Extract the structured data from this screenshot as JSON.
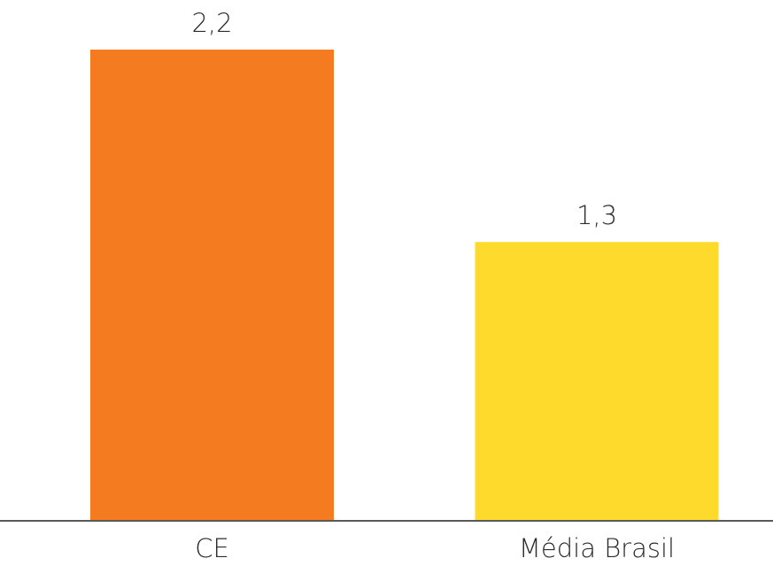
{
  "chart_data": {
    "type": "bar",
    "categories": [
      "CE",
      "Média Brasil"
    ],
    "values": [
      2.2,
      1.3
    ],
    "value_labels": [
      "2,2",
      "1,3"
    ],
    "colors": [
      "#f47b20",
      "#fdda2c"
    ]
  }
}
